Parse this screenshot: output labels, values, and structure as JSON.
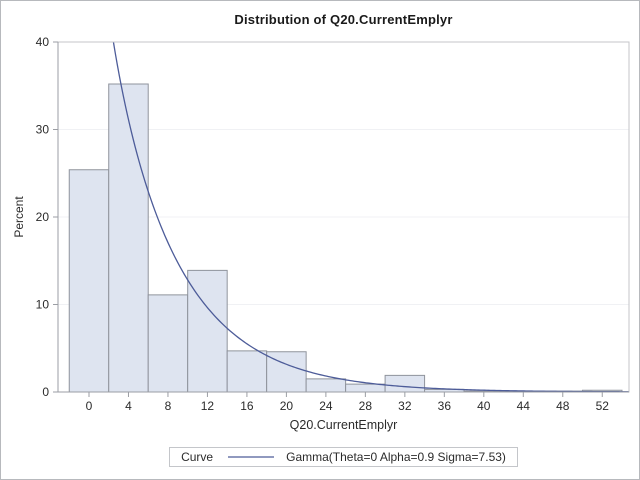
{
  "figure": {
    "title": "Distribution of Q20.CurrentEmplyr"
  },
  "chart_data": {
    "type": "bar",
    "subtype": "histogram_with_fitted_curve",
    "title": "Distribution of Q20.CurrentEmplyr",
    "xlabel": "Q20.CurrentEmplyr",
    "ylabel": "Percent",
    "categories": [
      0,
      4,
      8,
      12,
      16,
      20,
      24,
      28,
      32,
      36,
      40,
      44,
      48,
      52
    ],
    "values": [
      25.4,
      35.2,
      11.1,
      13.9,
      4.7,
      4.6,
      1.5,
      0.9,
      1.9,
      0.3,
      0.1,
      0.1,
      0.1,
      0.2
    ],
    "bin_width": 4,
    "x_ticks": [
      0,
      4,
      8,
      12,
      16,
      20,
      24,
      28,
      32,
      36,
      40,
      44,
      48,
      52
    ],
    "y_ticks": [
      0,
      10,
      20,
      30,
      40
    ],
    "xlim": [
      -3.14,
      54.71
    ],
    "ylim": [
      0,
      40
    ],
    "grid": "horizontal",
    "legend_position": "bottom-outside",
    "curve": {
      "family": "gamma",
      "theta": 0,
      "alpha": 0.9,
      "sigma": 7.53,
      "label": "Gamma(Theta=0 Alpha=0.9 Sigma=7.53)"
    },
    "legend": {
      "title": "Curve",
      "entry": "Gamma(Theta=0 Alpha=0.9 Sigma=7.53)"
    },
    "colors": {
      "bar_fill": "#dee4f0",
      "bar_border": "#8f939c",
      "curve": "#4d5c99",
      "frame": "#c4c6ca",
      "axis": "#9b9ea4",
      "grid": "#f0f1f4",
      "text": "#2b2b2b",
      "figure_border": "#b7b9bd",
      "background": "#ffffff"
    }
  }
}
